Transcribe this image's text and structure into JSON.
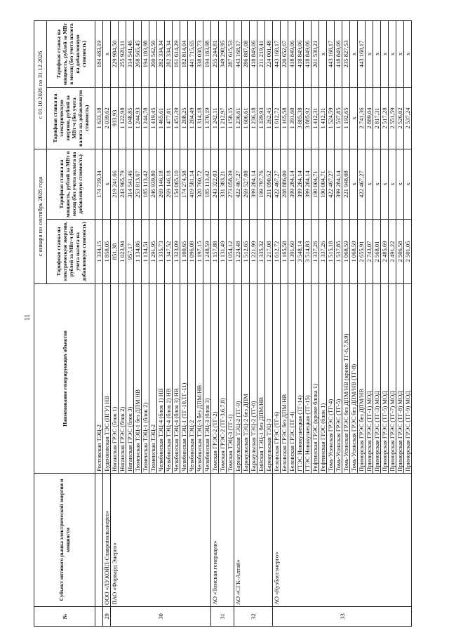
{
  "page_number": "11",
  "header": {
    "num": "№",
    "subject": "Субъект оптового рынка электрической энергии и мощности",
    "object": "Наименование генерирующих объектов",
    "period1": "с января по сентябрь 2026 года",
    "period2": "с 01.10.2026 по 31.12.2026",
    "energy_rate": "Тарифная ставка на электрическую энергию, рублей за МВт·ч (без учета налога на добавленную стоимость)",
    "power_rate": "Тарифная ставка на мощность, рублей за МВт в месяц (без учета налога на добавленную стоимость)"
  },
  "subjects": [
    {
      "num": "",
      "name": "",
      "start": 0,
      "span": 1
    },
    {
      "num": "29",
      "name": "ООО «ЛУКОЙЛ-Ставропольэнерго»",
      "start": 1,
      "span": 1
    },
    {
      "num": "30",
      "name": "ПАО «Форвард Энерго»",
      "start": 2,
      "span": 13
    },
    {
      "num": "31",
      "name": "АО «Томская генерация»",
      "start": 15,
      "span": 3
    },
    {
      "num": "32",
      "name": "АО «СГК-Алтай»",
      "start": 18,
      "span": 5
    },
    {
      "num": "33",
      "name": "АО «Кузбассэнерго»",
      "start": 23,
      "span": 18
    }
  ],
  "rows": [
    {
      "name": "Ростовская ТЭЦ-2",
      "e1": "1 334,15",
      "p1": "174 739,34",
      "e2": "1 633,18",
      "p2": "184 483,19"
    },
    {
      "name": "Буденновская ТЭС (ПГУ) НВ",
      "e1": "1 858,05",
      "p1": "x",
      "e2": "2 039,62",
      "p2": "x"
    },
    {
      "name": "Няганская ГРЭС (блок 1)",
      "e1": "851,38",
      "p1": "219 241,66",
      "e2": "933,93",
      "p2": "229 984,50"
    },
    {
      "name": "Няганская ГРЭС (блок 2)",
      "e1": "1 023,94",
      "p1": "243 965,79",
      "e2": "1 122,98",
      "p2": "255 920,11"
    },
    {
      "name": "Няганская ГРЭС (блок 3)",
      "e1": "957,17",
      "p1": "314 541,46",
      "e2": "1 048,85",
      "p2": "314 541,46"
    },
    {
      "name": "Тюменская ТЭЦ-1 без ДПМ/НВ",
      "e1": "1 134,86",
      "p1": "253 813,67",
      "e2": "1 244,93",
      "p2": "268 565,45"
    },
    {
      "name": "Тюменская ТЭЦ-1 (блок 2)",
      "e1": "1 134,51",
      "p1": "185 113,42",
      "e2": "1 244,78",
      "p2": "194 183,98"
    },
    {
      "name": "Тюменская ТЭЦ-2",
      "e1": "1 291,95",
      "p1": "246 939,80",
      "e2": "1 419,45",
      "p2": "260 542,50"
    },
    {
      "name": "Челябинская ТЭЦ-4 (блок 1) НВ",
      "e1": "1 335,73",
      "p1": "269 146,18",
      "e2": "1 465,61",
      "p2": "282 334,34"
    },
    {
      "name": "Челябинская ТЭЦ-4 (блок 2) НВ",
      "e1": "1 347,52",
      "p1": "269 146,18",
      "e2": "1 477,81",
      "p2": "282 334,34"
    },
    {
      "name": "Челябинская ТЭЦ-4 (блок 3) НВ",
      "e1": "1 323,09",
      "p1": "154 065,10",
      "e2": "1 451,39",
      "p2": "161 614,29"
    },
    {
      "name": "Челябинская ТЭЦ-1 (ТГ-10,ТГ-11)",
      "e1": "1 100,65",
      "p1": "174 274,58",
      "e2": "1 208,25",
      "p2": "182 814,04"
    },
    {
      "name": "Челябинская ТЭЦ-2",
      "e1": "1 096,08",
      "p1": "419 581,14",
      "e2": "1 204,49",
      "p2": "441 715,65"
    },
    {
      "name": "Челябинская ТЭЦ-3 без ДПМ/НВ",
      "e1": "1 197,15",
      "p1": "320 760,72",
      "e2": "1 314,18",
      "p2": "338 038,73"
    },
    {
      "name": "Челябинская ТЭЦ-3 (блок 3)",
      "e1": "1 248,59",
      "p1": "185 113,42",
      "e2": "1 370,19",
      "p2": "194 183,98"
    },
    {
      "name": "Томская ГРЭС-2 (ТГ-2)",
      "e1": "1 157,88",
      "p1": "243 322,03",
      "e2": "1 242,11",
      "p2": "255 244,81"
    },
    {
      "name": "Томская ГРЭС-2 (ТГ-3,6,7,8)",
      "e1": "1 131,49",
      "p1": "331 383,21",
      "e2": "1 212,97",
      "p2": "349 298,95"
    },
    {
      "name": "Томская ТЭЦ-3 (ТГ-1)",
      "e1": "1 054,12",
      "p1": "273 058,39",
      "e2": "1 158,15",
      "p2": "287 615,53"
    },
    {
      "name": "Барнаульская ТЭЦ-2 (ТГ-9)",
      "e1": "1 224,48",
      "p1": "422 467,27",
      "e2": "1 236,61",
      "p2": "443 168,17"
    },
    {
      "name": "Барнаульская ТЭЦ-2 без ДПМ",
      "e1": "1 512,65",
      "p1": "269 527,08",
      "e2": "1 606,61",
      "p2": "286 887,08"
    },
    {
      "name": "Барнаульская ТЭЦ-2 (ТГ-8)",
      "e1": "1 221,99",
      "p1": "399 284,14",
      "e2": "1 236,18",
      "p2": "418 849,06"
    },
    {
      "name": "Бийская ТЭЦ-1 без ДПМ/НВ",
      "e1": "1 335,32",
      "p1": "199 797,76",
      "e2": "1 339,93",
      "p2": "211 219,41"
    },
    {
      "name": "Барнаульская ТЭЦ-3",
      "e1": "1 217,08",
      "p1": "211 090,52",
      "e2": "1 262,45",
      "p2": "224 001,48"
    },
    {
      "name": "Беловская ГРЭС (ТГ-6)",
      "e1": "1 612,72",
      "p1": "422 467,27",
      "e2": "1 612,72",
      "p2": "443 168,17"
    },
    {
      "name": "Беловская ГРЭС без ДПМ/НВ",
      "e1": "1 165,58",
      "p1": "208 886,00",
      "e2": "1 165,58",
      "p2": "220 652,67"
    },
    {
      "name": "Беловская ГРЭС (ТГ-4)",
      "e1": "1 391,60",
      "p1": "399 284,14",
      "e2": "1 391,60",
      "p2": "418 849,06"
    },
    {
      "name": "ГТЭС Новокузнецкая (ТГ-14)",
      "e1": "3 548,14",
      "p1": "399 284,14",
      "e2": "3 885,38",
      "p2": "418 849,06"
    },
    {
      "name": "ГТЭС Новокузнецкая (ТГ-15)",
      "e1": "3 514,83",
      "p1": "399 284,14",
      "e2": "3 885,92",
      "p2": "418 849,06"
    },
    {
      "name": "Рефтинская ГРЭС (кроме блока 1)",
      "e1": "1 337,26",
      "p1": "190 004,71",
      "e2": "1 412,31",
      "p2": "201 530,21"
    },
    {
      "name": "Рефтинская ГРЭС (блок 1)",
      "e1": "1 337,26",
      "p1": "190 004,71",
      "e2": "1 412,31",
      "p2": "x"
    },
    {
      "name": "Томь-Усинская ГРЭС (ТГ-4)",
      "e1": "1 515,18",
      "p1": "422 467,27",
      "e2": "1 524,59",
      "p2": "443 168,17"
    },
    {
      "name": "Томь-Усинская ГРЭС (ТГ-5)",
      "e1": "1 537,85",
      "p1": "399 284,14",
      "e2": "1 537,85",
      "p2": "418 849,06"
    },
    {
      "name": "Томь-Усинская ГРЭС без ДПМ/НВ (кроме ТГ-6,7,8,9)",
      "e1": "1 068,59",
      "p1": "221 948,08",
      "e2": "1 192,65",
      "p2": "235 827,53"
    },
    {
      "name": "Томь-Усинская ГРЭС без ДПМ/НВ (ТГ-8)",
      "e1": "1 068,59",
      "p1": "x",
      "e2": "x",
      "p2": "x"
    },
    {
      "name": "Приморская ГРЭС без ДПМ/НВ",
      "e1": "2 655,91",
      "p1": "422 467,27",
      "e2": "2 741,36",
      "p2": "443 168,17"
    },
    {
      "name": "Приморская ГРЭС (ТГ-1) МОД",
      "e1": "2 743,07",
      "p1": "x",
      "e2": "2 889,04",
      "p2": "x"
    },
    {
      "name": "Приморская ГРЭС (ТГ-3) МОД",
      "e1": "2 568,01",
      "p1": "x",
      "e2": "2 817,31",
      "p2": "x"
    },
    {
      "name": "Приморская ГРЭС (ТГ-5) МОД",
      "e1": "2 485,69",
      "p1": "x",
      "e2": "2 517,28",
      "p2": "x"
    },
    {
      "name": "Приморская ГРЭС (ТГ-7) МОД",
      "e1": "2 491,22",
      "p1": "x",
      "e2": "2 551,59",
      "p2": "x"
    },
    {
      "name": "Приморская ГРЭС (ТГ-8) МОД",
      "e1": "2 506,58",
      "p1": "x",
      "e2": "2 526,02",
      "p2": "x"
    },
    {
      "name": "Приморская ГРЭС (ТГ-9) МОД",
      "e1": "2 501,05",
      "p1": "x",
      "e2": "2 537,24",
      "p2": "x"
    }
  ]
}
